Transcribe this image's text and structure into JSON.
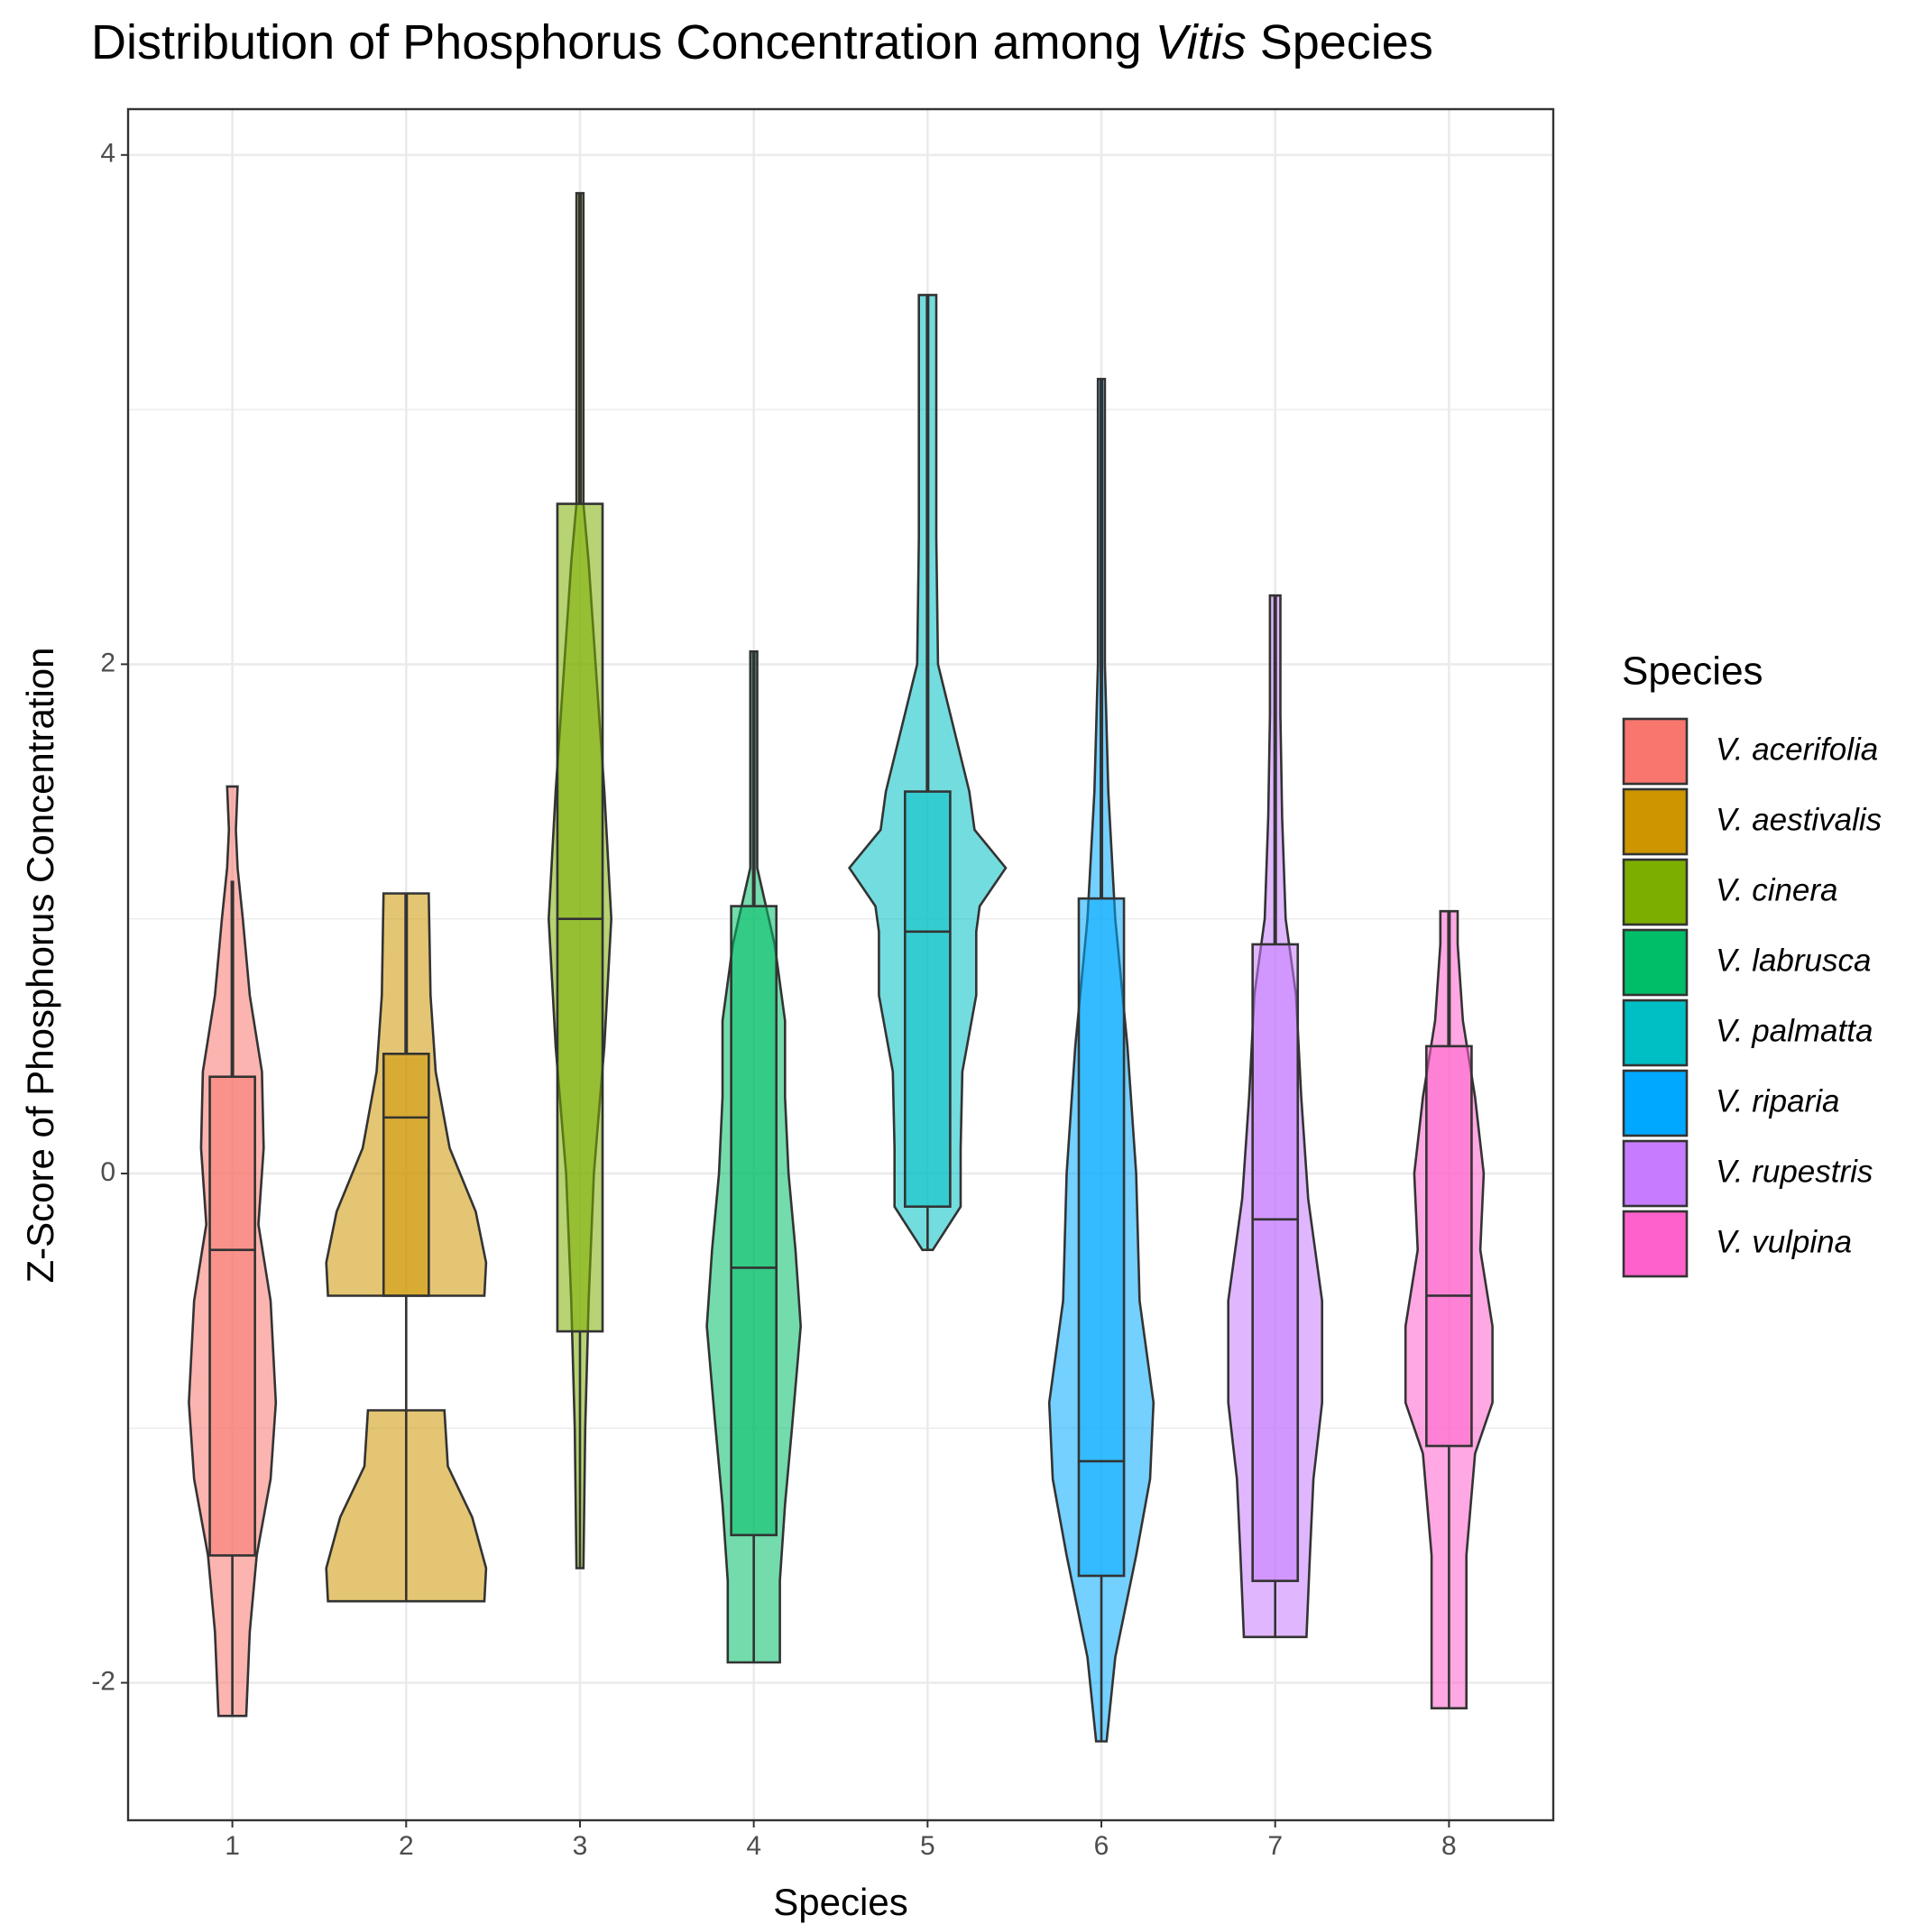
{
  "chart_data": {
    "type": "violin",
    "title": [
      "Distribution of Phosphorus Concentration among ",
      "Vitis",
      " Species"
    ],
    "x_label": "Species",
    "y_label": "Z-Score of Phosphorus Concentration",
    "legend_title": "Species",
    "legend_position": "right",
    "grid": true,
    "categories": [
      "1",
      "2",
      "3",
      "4",
      "5",
      "6",
      "7",
      "8"
    ],
    "ylim": [
      -2.54,
      4.18
    ],
    "yticks": [
      -2,
      0,
      2,
      4
    ],
    "minor_yticks": [
      -1,
      1,
      3
    ],
    "series": [
      {
        "name": "V. acerifolia",
        "color": "#F8766D",
        "box": [
          -2.13,
          -1.5,
          -0.3,
          0.38,
          1.15
        ],
        "violin": {
          "y": [
            -2.13,
            -1.8,
            -1.5,
            -1.2,
            -0.9,
            -0.5,
            -0.2,
            0.1,
            0.4,
            0.7,
            1.0,
            1.2,
            1.35,
            1.52
          ],
          "width": [
            0.08,
            0.1,
            0.14,
            0.22,
            0.25,
            0.22,
            0.15,
            0.18,
            0.17,
            0.1,
            0.06,
            0.03,
            0.02,
            0.03
          ]
        }
      },
      {
        "name": "V. aestivalis",
        "color": "#CD9600",
        "box": [
          -1.68,
          -0.48,
          0.22,
          0.47,
          1.1
        ],
        "violin": {
          "y": [
            -1.68,
            -1.55,
            -1.35,
            -1.15,
            -0.93,
            null,
            -0.48,
            -0.35,
            -0.15,
            0.1,
            0.4,
            0.7,
            1.1
          ],
          "width": [
            0.45,
            0.46,
            0.38,
            0.24,
            0.22,
            null,
            0.45,
            0.46,
            0.4,
            0.25,
            0.17,
            0.14,
            0.13
          ]
        }
      },
      {
        "name": "V. cinera",
        "color": "#7CAE00",
        "box": [
          -1.55,
          -0.62,
          1.0,
          2.63,
          3.85
        ],
        "violin": {
          "y": [
            -1.55,
            -1.0,
            -0.5,
            0,
            0.5,
            1.0,
            1.5,
            2.0,
            2.4,
            2.63,
            3.0,
            3.5,
            3.85
          ],
          "width": [
            0.02,
            0.03,
            0.05,
            0.08,
            0.14,
            0.18,
            0.14,
            0.09,
            0.05,
            0.02,
            0.02,
            0.02,
            0.02
          ]
        }
      },
      {
        "name": "V. labrusca",
        "color": "#00BE67",
        "box": [
          -1.92,
          -1.42,
          -0.37,
          1.05,
          2.05
        ],
        "violin": {
          "y": [
            -1.92,
            -1.6,
            -1.3,
            -1.0,
            -0.6,
            -0.3,
            0,
            0.3,
            0.6,
            0.9,
            1.2,
            1.6,
            2.05
          ],
          "width": [
            0.15,
            0.15,
            0.18,
            0.22,
            0.27,
            0.24,
            0.2,
            0.18,
            0.18,
            0.12,
            0.02,
            0.02,
            0.02
          ]
        }
      },
      {
        "name": "V. palmatta",
        "color": "#00BFC4",
        "box": [
          -0.3,
          -0.13,
          0.95,
          1.5,
          3.45
        ],
        "violin": {
          "y": [
            -0.3,
            -0.13,
            0.1,
            0.4,
            0.7,
            0.95,
            1.05,
            1.2,
            1.35,
            1.5,
            2.0,
            2.5,
            3.0,
            3.45
          ],
          "width": [
            0.03,
            0.19,
            0.19,
            0.2,
            0.28,
            0.28,
            0.3,
            0.45,
            0.27,
            0.24,
            0.06,
            0.05,
            0.05,
            0.05
          ]
        }
      },
      {
        "name": "V. riparia",
        "color": "#00A9FF",
        "box": [
          -2.23,
          -1.58,
          -1.13,
          1.08,
          3.12
        ],
        "violin": {
          "y": [
            -2.23,
            -1.9,
            -1.5,
            -1.2,
            -0.9,
            -0.5,
            0,
            0.5,
            1.0,
            1.5,
            2.0,
            2.5,
            3.12
          ],
          "width": [
            0.03,
            0.08,
            0.2,
            0.28,
            0.3,
            0.22,
            0.2,
            0.15,
            0.08,
            0.04,
            0.02,
            0.02,
            0.02
          ]
        }
      },
      {
        "name": "V. rupestris",
        "color": "#C77CFF",
        "box": [
          -1.82,
          -1.6,
          -0.18,
          0.9,
          2.27
        ],
        "violin": {
          "y": [
            -1.82,
            -1.5,
            -1.2,
            -0.9,
            -0.5,
            -0.1,
            0.3,
            0.7,
            1.0,
            1.4,
            1.8,
            2.27
          ],
          "width": [
            0.18,
            0.2,
            0.22,
            0.27,
            0.27,
            0.19,
            0.15,
            0.12,
            0.06,
            0.04,
            0.03,
            0.03
          ]
        }
      },
      {
        "name": "V. vulpina",
        "color": "#FF61CC",
        "box": [
          -2.1,
          -1.07,
          -0.48,
          0.5,
          1.03
        ],
        "violin": {
          "y": [
            -2.1,
            -1.5,
            -1.1,
            -0.9,
            -0.6,
            -0.3,
            0,
            0.3,
            0.6,
            0.9,
            1.03
          ],
          "width": [
            0.1,
            0.1,
            0.15,
            0.25,
            0.25,
            0.18,
            0.2,
            0.15,
            0.08,
            0.05,
            0.05
          ]
        }
      }
    ]
  }
}
